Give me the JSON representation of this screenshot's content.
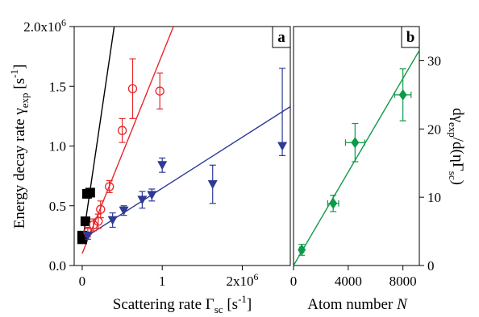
{
  "chart_data": [
    {
      "panel": "a",
      "type": "scatter",
      "panel_label": "a",
      "xlabel": {
        "main": "Scattering rate Γ",
        "sub": "sc",
        "unit": " [s",
        "sup": "-1",
        "close": "]"
      },
      "ylabel": {
        "main": "Energy decay rate γ",
        "sub": "exp",
        "unit": " [s",
        "sup": "-1",
        "close": "]"
      },
      "xlim": [
        -0.1,
        2.6
      ],
      "ylim": [
        0,
        2.0
      ],
      "multiplier_note": "axis values in units of 10^6",
      "x_ticks": [
        {
          "v": 0,
          "label": "0"
        },
        {
          "v": 1,
          "label": "1"
        },
        {
          "v": 2,
          "label": "2x10",
          "exp": "6"
        }
      ],
      "y_ticks": [
        {
          "v": 0,
          "label": "0.0"
        },
        {
          "v": 0.5,
          "label": "0.5"
        },
        {
          "v": 1.0,
          "label": "1.0"
        },
        {
          "v": 1.5,
          "label": "1.5"
        },
        {
          "v": 2.0,
          "label": "2.0x10",
          "exp": "6"
        }
      ],
      "grid": false,
      "series": [
        {
          "marker": "square",
          "color": "#000000",
          "points": [
            {
              "x": 0.0,
              "y": 0.22,
              "yerr": 0.02
            },
            {
              "x": 0.0,
              "y": 0.25,
              "yerr": 0.02
            },
            {
              "x": 0.04,
              "y": 0.37,
              "yerr": 0.03
            },
            {
              "x": 0.06,
              "y": 0.6,
              "yerr": 0.03
            },
            {
              "x": 0.1,
              "y": 0.61,
              "yerr": 0.03
            }
          ],
          "fit": {
            "x0": 0.0,
            "y0": 0.18,
            "x1": 0.4,
            "y1": 2.0
          }
        },
        {
          "marker": "circle-open",
          "color": "#e8262b",
          "points": [
            {
              "x": 0.07,
              "y": 0.28,
              "yerr": 0.04
            },
            {
              "x": 0.14,
              "y": 0.34,
              "yerr": 0.05
            },
            {
              "x": 0.2,
              "y": 0.37,
              "yerr": 0.06
            },
            {
              "x": 0.23,
              "y": 0.47,
              "yerr": 0.07
            },
            {
              "x": 0.34,
              "y": 0.66,
              "yerr": 0.05
            },
            {
              "x": 0.5,
              "y": 1.13,
              "yerr": 0.1
            },
            {
              "x": 0.63,
              "y": 1.48,
              "yerr": 0.25
            },
            {
              "x": 0.97,
              "y": 1.46,
              "yerr": 0.15
            }
          ],
          "fit": {
            "x0": 0.0,
            "y0": 0.1,
            "x1": 1.14,
            "y1": 2.0
          }
        },
        {
          "marker": "triangle-down",
          "color": "#2e3a94",
          "points": [
            {
              "x": 0.07,
              "y": 0.25,
              "yerr": 0.03
            },
            {
              "x": 0.38,
              "y": 0.38,
              "yerr": 0.06
            },
            {
              "x": 0.52,
              "y": 0.46,
              "yerr": 0.04
            },
            {
              "x": 0.75,
              "y": 0.55,
              "yerr": 0.07
            },
            {
              "x": 0.87,
              "y": 0.59,
              "yerr": 0.05
            },
            {
              "x": 1.0,
              "y": 0.84,
              "yerr": 0.06
            },
            {
              "x": 1.63,
              "y": 0.68,
              "yerr": 0.16
            },
            {
              "x": 2.5,
              "y": 1.0,
              "yerr_minus": 0.08,
              "yerr_plus": 0.65
            }
          ],
          "fit": {
            "x0": 0.0,
            "y0": 0.22,
            "x1": 2.6,
            "y1": 1.33
          }
        }
      ]
    },
    {
      "panel": "b",
      "type": "scatter",
      "panel_label": "b",
      "xlabel": {
        "main": "Atom number ",
        "italic": "N"
      },
      "ylabel": {
        "text": "dγexp/d(ηΓsc)"
      },
      "xlim": [
        0,
        9200
      ],
      "ylim": [
        0,
        35
      ],
      "x_ticks": [
        {
          "v": 0,
          "label": "0"
        },
        {
          "v": 4000,
          "label": "4000"
        },
        {
          "v": 8000,
          "label": "8000"
        }
      ],
      "y_ticks": [
        {
          "v": 0,
          "label": "0"
        },
        {
          "v": 10,
          "label": "10"
        },
        {
          "v": 20,
          "label": "20"
        },
        {
          "v": 30,
          "label": "30"
        }
      ],
      "grid": false,
      "series": [
        {
          "marker": "diamond",
          "color": "#0e9a4a",
          "points": [
            {
              "x": 600,
              "y": 2.3,
              "xerr": 150,
              "yerr": 0.8
            },
            {
              "x": 2900,
              "y": 9.1,
              "xerr": 400,
              "yerr": 1.2
            },
            {
              "x": 4500,
              "y": 18.0,
              "xerr": 700,
              "yerr": 2.8
            },
            {
              "x": 8000,
              "y": 25.0,
              "xerr": 600,
              "yerr": 3.8
            }
          ],
          "fit": {
            "x0": 0,
            "y0": 0.0,
            "x1": 9200,
            "y1": 31.5
          }
        }
      ]
    }
  ]
}
